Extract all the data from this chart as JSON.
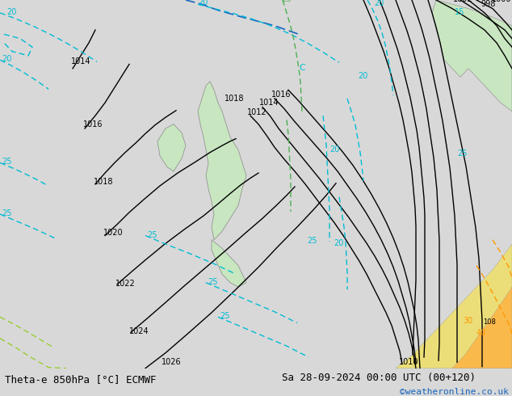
{
  "title_left": "Theta-e 850hPa [°C] ECMWF",
  "title_right": "Sa 28-09-2024 00:00 UTC (00+120)",
  "watermark": "©weatheronline.co.uk",
  "bg_color": "#d8d8d8",
  "land_color_light": "#c8e6c0",
  "land_color_warm": "#ffe0a0",
  "isobar_color": "#000000",
  "theta_color_cyan": "#00bcd4",
  "theta_color_blue": "#1565c0",
  "theta_color_green": "#4caf50",
  "theta_color_yellow": "#cddc39",
  "theta_color_orange": "#ff9800",
  "theta_color_red": "#f44336",
  "bottom_bar_color": "#ffffff",
  "fontsize_label": 9,
  "fontsize_title": 9,
  "fontsize_watermark": 8
}
